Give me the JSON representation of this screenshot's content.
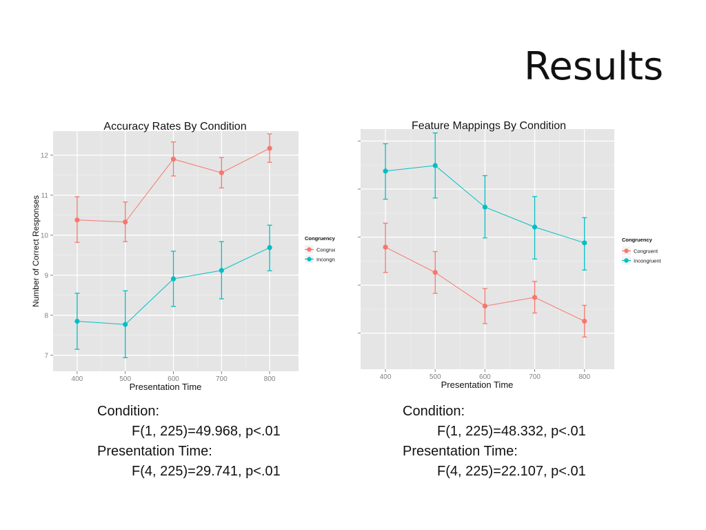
{
  "slide_title": "Results",
  "stats": [
    {
      "line1": "Condition:",
      "line2": "F(1, 225)=49.968, p<.01",
      "line3": "Presentation Time:",
      "line4": "F(4, 225)=29.741, p<.01"
    },
    {
      "line1": "Condition:",
      "line2": "F(1, 225)=48.332, p<.01",
      "line3": "Presentation Time:",
      "line4": "F(4, 225)=22.107, p<.01"
    }
  ],
  "colors": {
    "congruent": "#f8766d",
    "incongruent": "#00bfc4",
    "panel_bg": "#e5e5e5",
    "grid": "#ffffff"
  },
  "chart_data": [
    {
      "type": "line",
      "title": "Accuracy Rates By Condition",
      "xlabel": "Presentation Time",
      "ylabel": "Number of Correct Responses",
      "x": [
        400,
        500,
        600,
        700,
        800
      ],
      "xlim": [
        350,
        860
      ],
      "ylim": [
        6.6,
        12.6
      ],
      "yticks": [
        7,
        8,
        9,
        10,
        11,
        12
      ],
      "show_y_tick_labels": true,
      "grid": true,
      "legend": {
        "title": "Congruency",
        "position": "right"
      },
      "series": [
        {
          "name": "Congruent",
          "color": "#f8766d",
          "values": [
            10.38,
            10.33,
            11.9,
            11.56,
            12.17
          ],
          "err_low": [
            9.82,
            9.84,
            11.48,
            11.18,
            11.82
          ],
          "err_high": [
            10.96,
            10.83,
            12.33,
            11.94,
            12.53
          ]
        },
        {
          "name": "Incongruent",
          "color": "#00bfc4",
          "values": [
            7.85,
            7.77,
            8.91,
            9.12,
            9.69
          ],
          "err_low": [
            7.15,
            6.94,
            8.22,
            8.41,
            9.11
          ],
          "err_high": [
            8.55,
            8.61,
            9.6,
            9.84,
            10.25
          ]
        }
      ]
    },
    {
      "type": "line",
      "title": "Feature Mappings By Condition",
      "xlabel": "Presentation Time",
      "ylabel": "",
      "x": [
        400,
        500,
        600,
        700,
        800
      ],
      "xlim": [
        350,
        860
      ],
      "ylim": [
        0,
        10
      ],
      "yticks": [
        1.5,
        3.5,
        5.5,
        7.5,
        9.5
      ],
      "show_y_tick_labels": false,
      "grid": true,
      "legend": {
        "title": "Congruency",
        "position": "right"
      },
      "series": [
        {
          "name": "Congruent",
          "color": "#f8766d",
          "values": [
            5.08,
            4.03,
            2.63,
            2.99,
            2.0
          ],
          "err_low": [
            4.03,
            3.16,
            1.9,
            2.34,
            1.34
          ],
          "err_high": [
            6.08,
            4.9,
            3.36,
            3.66,
            2.66
          ]
        },
        {
          "name": "Incongruent",
          "color": "#00bfc4",
          "values": [
            8.25,
            8.48,
            6.75,
            5.92,
            5.26
          ],
          "err_low": [
            7.08,
            7.13,
            5.47,
            4.59,
            4.13
          ],
          "err_high": [
            9.39,
            9.84,
            8.06,
            7.19,
            6.31
          ]
        }
      ]
    }
  ]
}
